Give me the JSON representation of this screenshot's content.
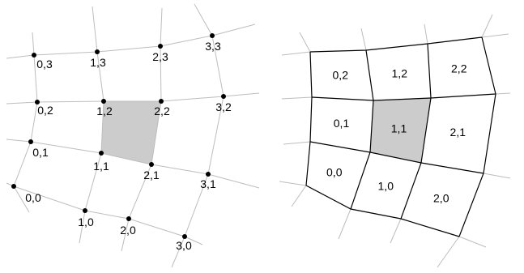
{
  "colors": {
    "grid_line": "#bdbdbd",
    "cell_edge": "#000000",
    "highlight_fill": "#cccccc",
    "vertex": "#000000",
    "text": "#000000"
  },
  "left_panel": {
    "highlighted_cell": "1,1 - 2,2",
    "vertex_labels": [
      "0,0",
      "1,0",
      "2,0",
      "3,0",
      "0,1",
      "1,1",
      "2,1",
      "3,1",
      "0,2",
      "1,2",
      "2,2",
      "3,2",
      "0,3",
      "1,3",
      "2,3",
      "3,3"
    ]
  },
  "right_panel": {
    "highlighted_cell": "1,1",
    "cell_labels": [
      "0,0",
      "1,0",
      "2,0",
      "0,1",
      "1,1",
      "2,1",
      "0,2",
      "1,2",
      "2,2"
    ]
  }
}
